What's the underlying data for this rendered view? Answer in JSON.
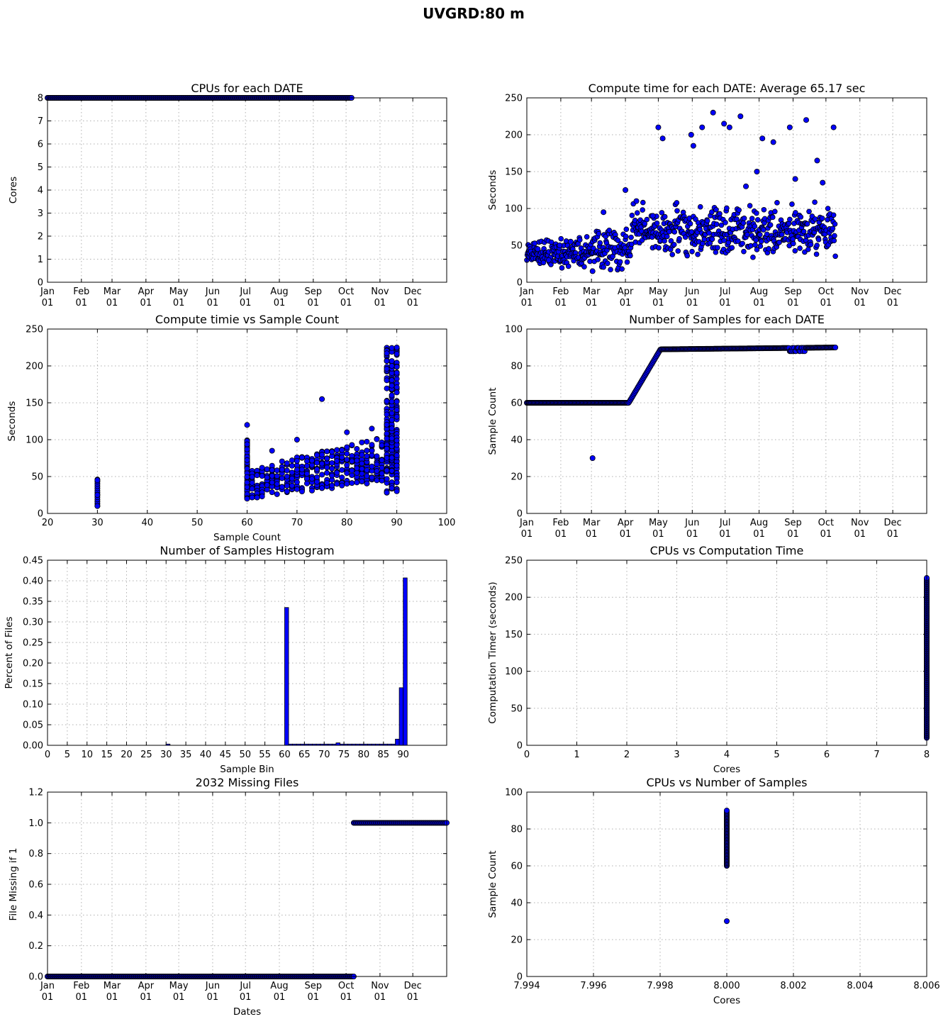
{
  "figure_title": "UVGRD:80 m",
  "chart_data": [
    {
      "id": "p1",
      "type": "scatter",
      "title": "CPUs for each DATE",
      "xlabel": "",
      "ylabel": "Cores",
      "xticks": [
        "Jan\n01",
        "Feb\n01",
        "Mar\n01",
        "Apr\n01",
        "May\n01",
        "Jun\n01",
        "Jul\n01",
        "Aug\n01",
        "Sep\n01",
        "Oct\n01",
        "Nov\n01",
        "Dec\n01"
      ],
      "xtick_pos": [
        0,
        31,
        59,
        90,
        120,
        151,
        181,
        212,
        243,
        273,
        304,
        334
      ],
      "xlim": [
        0,
        365
      ],
      "ylim": [
        0,
        8
      ],
      "yticks": [
        0,
        1,
        2,
        3,
        4,
        5,
        6,
        7,
        8
      ],
      "grid": true,
      "series": [
        {
          "x_range": [
            0,
            278
          ],
          "y": 8
        }
      ]
    },
    {
      "id": "p2",
      "type": "scatter",
      "title": "Compute time for each DATE: Average 65.17 sec",
      "xlabel": "",
      "ylabel": "Seconds",
      "xticks": [
        "Jan\n01",
        "Feb\n01",
        "Mar\n01",
        "Apr\n01",
        "May\n01",
        "Jun\n01",
        "Jul\n01",
        "Aug\n01",
        "Sep\n01",
        "Oct\n01",
        "Nov\n01",
        "Dec\n01"
      ],
      "xtick_pos": [
        0,
        31,
        59,
        90,
        120,
        151,
        181,
        212,
        243,
        273,
        304,
        334
      ],
      "xlim": [
        0,
        365
      ],
      "ylim": [
        0,
        250
      ],
      "yticks": [
        0,
        50,
        100,
        150,
        200,
        250
      ],
      "grid": true,
      "series": [
        {
          "x_range": [
            0,
            282
          ],
          "points": [
            [
              10,
              45
            ],
            [
              20,
              30
            ],
            [
              30,
              50
            ],
            [
              40,
              55
            ],
            [
              60,
              15
            ],
            [
              70,
              95
            ],
            [
              90,
              125
            ],
            [
              100,
              110
            ],
            [
              115,
              90
            ],
            [
              120,
              210
            ],
            [
              124,
              195
            ],
            [
              150,
              200
            ],
            [
              152,
              185
            ],
            [
              160,
              210
            ],
            [
              170,
              230
            ],
            [
              180,
              215
            ],
            [
              185,
              210
            ],
            [
              195,
              225
            ],
            [
              200,
              130
            ],
            [
              210,
              150
            ],
            [
              215,
              195
            ],
            [
              225,
              190
            ],
            [
              240,
              210
            ],
            [
              245,
              140
            ],
            [
              255,
              220
            ],
            [
              265,
              165
            ],
            [
              270,
              135
            ],
            [
              280,
              210
            ]
          ]
        }
      ]
    },
    {
      "id": "p3",
      "type": "scatter",
      "title": "Compute timie vs Sample Count",
      "xlabel": "Sample Count",
      "ylabel": "Seconds",
      "xlim": [
        20,
        100
      ],
      "xticks": [
        20,
        30,
        40,
        50,
        60,
        70,
        80,
        90,
        100
      ],
      "ylim": [
        0,
        250
      ],
      "yticks": [
        0,
        50,
        100,
        150,
        200,
        250
      ],
      "grid": true,
      "series": [
        {
          "points": [
            [
              30,
              10
            ],
            [
              30,
              25
            ],
            [
              30,
              45
            ],
            [
              60,
              20
            ],
            [
              60,
              120
            ],
            [
              65,
              85
            ],
            [
              70,
              100
            ],
            [
              75,
              155
            ],
            [
              80,
              110
            ],
            [
              85,
              115
            ],
            [
              89,
              200
            ],
            [
              90,
              30
            ],
            [
              90,
              225
            ]
          ]
        }
      ]
    },
    {
      "id": "p4",
      "type": "scatter",
      "title": "Number of Samples for each DATE",
      "xlabel": "",
      "ylabel": "Sample Count",
      "xticks": [
        "Jan\n01",
        "Feb\n01",
        "Mar\n01",
        "Apr\n01",
        "May\n01",
        "Jun\n01",
        "Jul\n01",
        "Aug\n01",
        "Sep\n01",
        "Oct\n01",
        "Nov\n01",
        "Dec\n01"
      ],
      "xtick_pos": [
        0,
        31,
        59,
        90,
        120,
        151,
        181,
        212,
        243,
        273,
        304,
        334
      ],
      "xlim": [
        0,
        365
      ],
      "ylim": [
        0,
        100
      ],
      "yticks": [
        0,
        20,
        40,
        60,
        80,
        100
      ],
      "grid": true,
      "series": [
        {
          "line": [
            [
              0,
              60
            ],
            [
              93,
              60
            ],
            [
              122,
              89
            ],
            [
              282,
              90
            ]
          ],
          "outliers": [
            [
              60,
              30
            ]
          ]
        }
      ]
    },
    {
      "id": "p5",
      "type": "bar",
      "title": "Number of Samples Histogram",
      "xlabel": "Sample Bin",
      "ylabel": "Percent of Files",
      "xlim": [
        0,
        101
      ],
      "xticks": [
        0,
        5,
        10,
        15,
        20,
        25,
        30,
        35,
        40,
        45,
        50,
        55,
        60,
        65,
        70,
        75,
        80,
        85,
        90
      ],
      "ylim": [
        0,
        0.45
      ],
      "yticks": [
        "0.00",
        "0.05",
        "0.10",
        "0.15",
        "0.20",
        "0.25",
        "0.30",
        "0.35",
        "0.40",
        "0.45"
      ],
      "grid": true,
      "bars": [
        [
          30,
          0.003
        ],
        [
          60,
          0.335
        ],
        [
          61,
          0.003
        ],
        [
          62,
          0.003
        ],
        [
          63,
          0.003
        ],
        [
          64,
          0.003
        ],
        [
          65,
          0.003
        ],
        [
          66,
          0.003
        ],
        [
          67,
          0.003
        ],
        [
          68,
          0.003
        ],
        [
          69,
          0.003
        ],
        [
          70,
          0.003
        ],
        [
          71,
          0.003
        ],
        [
          72,
          0.003
        ],
        [
          73,
          0.006
        ],
        [
          74,
          0.003
        ],
        [
          75,
          0.003
        ],
        [
          76,
          0.003
        ],
        [
          77,
          0.003
        ],
        [
          78,
          0.003
        ],
        [
          79,
          0.003
        ],
        [
          80,
          0.003
        ],
        [
          81,
          0.003
        ],
        [
          82,
          0.003
        ],
        [
          83,
          0.003
        ],
        [
          84,
          0.003
        ],
        [
          85,
          0.003
        ],
        [
          86,
          0.003
        ],
        [
          87,
          0.003
        ],
        [
          88,
          0.015
        ],
        [
          89,
          0.14
        ],
        [
          90,
          0.407
        ]
      ]
    },
    {
      "id": "p6",
      "type": "scatter",
      "title": "CPUs vs Computation Time",
      "xlabel": "Cores",
      "ylabel": "Computation Timer (seconds)",
      "xlim": [
        0,
        8
      ],
      "xticks": [
        0,
        1,
        2,
        3,
        4,
        5,
        6,
        7,
        8
      ],
      "ylim": [
        0,
        250
      ],
      "yticks": [
        0,
        50,
        100,
        150,
        200,
        250
      ],
      "grid": true,
      "series": [
        {
          "x": 8,
          "y_range": [
            10,
            226
          ]
        }
      ]
    },
    {
      "id": "p7",
      "type": "scatter",
      "title": "2032 Missing Files",
      "xlabel": "Dates",
      "ylabel": "File Missing if 1",
      "xticks": [
        "Jan\n01",
        "Feb\n01",
        "Mar\n01",
        "Apr\n01",
        "May\n01",
        "Jun\n01",
        "Jul\n01",
        "Aug\n01",
        "Sep\n01",
        "Oct\n01",
        "Nov\n01",
        "Dec\n01"
      ],
      "xtick_pos": [
        0,
        31,
        59,
        90,
        120,
        151,
        181,
        212,
        243,
        273,
        304,
        334
      ],
      "xlim": [
        0,
        365
      ],
      "ylim": [
        0,
        1.2
      ],
      "yticks": [
        "0.0",
        "0.2",
        "0.4",
        "0.6",
        "0.8",
        "1.0",
        "1.2"
      ],
      "grid": true,
      "series": [
        {
          "zeros_range": [
            0,
            280
          ],
          "ones_range": [
            280,
            365
          ]
        }
      ]
    },
    {
      "id": "p8",
      "type": "scatter",
      "title": "CPUs vs Number of Samples",
      "xlabel": "Cores",
      "ylabel": "Sample Count",
      "xlim": [
        7.994,
        8.006
      ],
      "xticks": [
        "7.994",
        "7.996",
        "7.998",
        "8.000",
        "8.002",
        "8.004",
        "8.006"
      ],
      "ylim": [
        0,
        100
      ],
      "yticks": [
        0,
        20,
        40,
        60,
        80,
        100
      ],
      "grid": true,
      "series": [
        {
          "x": 8.0,
          "y_range": [
            60,
            90
          ],
          "outliers": [
            [
              8.0,
              30
            ]
          ]
        }
      ]
    }
  ]
}
